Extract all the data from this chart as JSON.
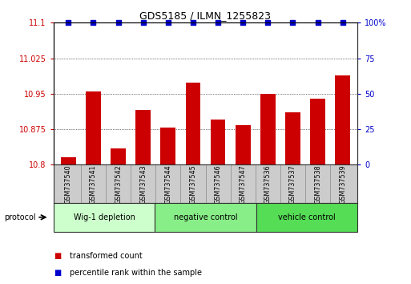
{
  "title": "GDS5185 / ILMN_1255823",
  "samples": [
    "GSM737540",
    "GSM737541",
    "GSM737542",
    "GSM737543",
    "GSM737544",
    "GSM737545",
    "GSM737546",
    "GSM737547",
    "GSM737536",
    "GSM737537",
    "GSM737538",
    "GSM737539"
  ],
  "transformed_counts": [
    10.815,
    10.955,
    10.835,
    10.915,
    10.878,
    10.973,
    10.895,
    10.883,
    10.95,
    10.91,
    10.94,
    10.988
  ],
  "percentile_ranks": [
    100,
    100,
    100,
    100,
    100,
    100,
    100,
    100,
    100,
    100,
    100,
    100
  ],
  "bar_color": "#cc0000",
  "dot_color": "#0000cc",
  "ylim_left": [
    10.8,
    11.1
  ],
  "ylim_right": [
    0,
    100
  ],
  "yticks_left": [
    10.8,
    10.875,
    10.95,
    11.025,
    11.1
  ],
  "yticks_right": [
    0,
    25,
    50,
    75,
    100
  ],
  "groups": [
    {
      "label": "Wig-1 depletion",
      "indices": [
        0,
        1,
        2,
        3
      ],
      "color": "#ccffcc"
    },
    {
      "label": "negative control",
      "indices": [
        4,
        5,
        6,
        7
      ],
      "color": "#88ee88"
    },
    {
      "label": "vehicle control",
      "indices": [
        8,
        9,
        10,
        11
      ],
      "color": "#55dd55"
    }
  ],
  "protocol_label": "protocol",
  "legend_red_label": "transformed count",
  "legend_blue_label": "percentile rank within the sample",
  "grid_color": "#000000",
  "bg_color": "#ffffff",
  "sample_bg_color": "#cccccc",
  "bar_width": 0.6
}
